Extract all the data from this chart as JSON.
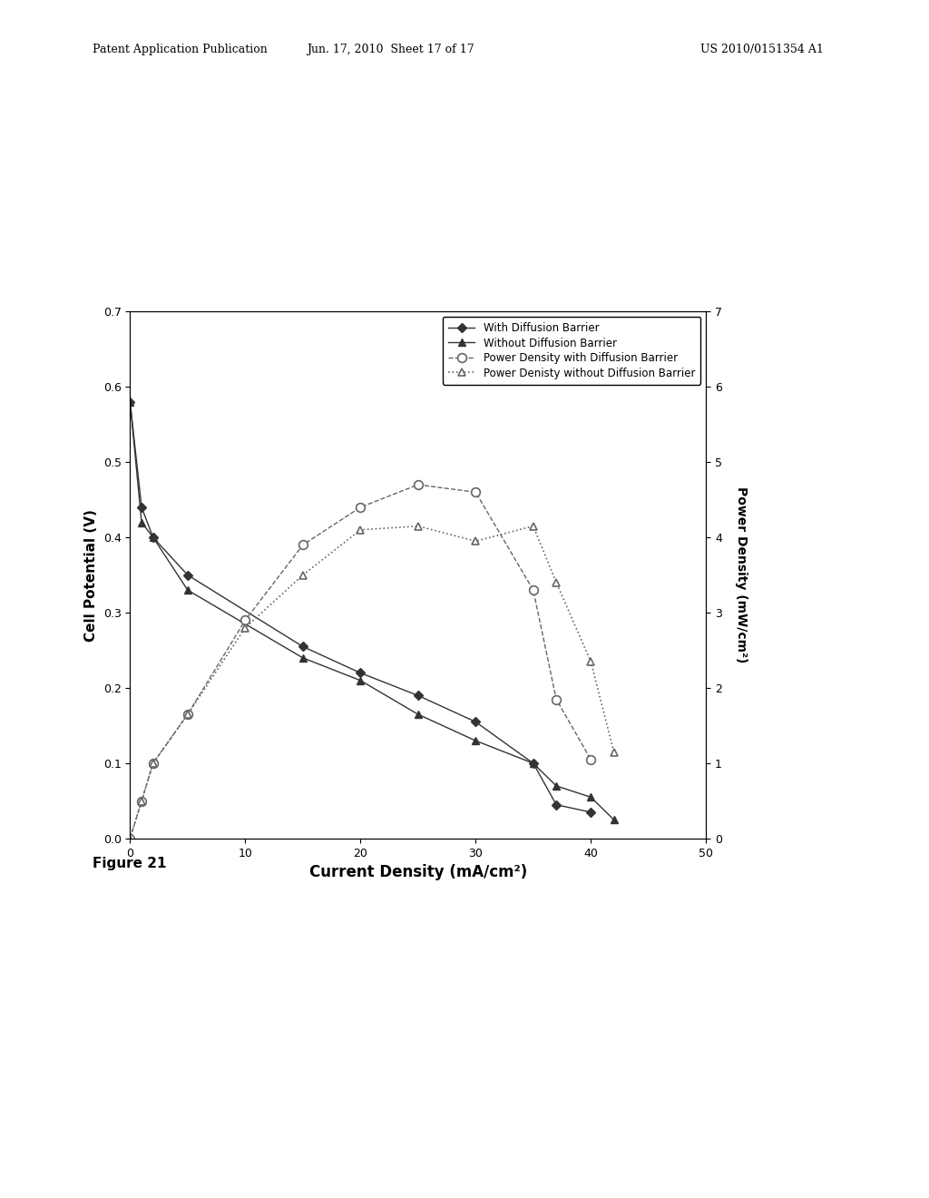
{
  "title_header_left": "Patent Application Publication",
  "title_header_mid": "Jun. 17, 2010  Sheet 17 of 17",
  "title_header_right": "US 2010/0151354 A1",
  "figure_label": "Figure 21",
  "xlabel": "Current Density (mA/cm²)",
  "ylabel_left": "Cell Potential (V)",
  "ylabel_right": "Power Density (mW/cm²)",
  "xlim": [
    0,
    50
  ],
  "ylim_left": [
    0,
    0.7
  ],
  "ylim_right": [
    0.0,
    7.0
  ],
  "yticks_left": [
    0,
    0.1,
    0.2,
    0.3,
    0.4,
    0.5,
    0.6,
    0.7
  ],
  "yticks_right": [
    0.0,
    1.0,
    2.0,
    3.0,
    4.0,
    5.0,
    6.0,
    7.0
  ],
  "xticks": [
    0,
    10,
    20,
    30,
    40,
    50
  ],
  "series1_x": [
    0,
    1,
    2,
    5,
    15,
    20,
    25,
    30,
    35,
    37,
    40
  ],
  "series1_y": [
    0.58,
    0.44,
    0.4,
    0.35,
    0.255,
    0.22,
    0.19,
    0.155,
    0.1,
    0.045,
    0.035
  ],
  "series1_label": "With Diffusion Barrier",
  "series2_x": [
    0,
    1,
    2,
    5,
    15,
    20,
    25,
    30,
    35,
    37,
    40,
    42
  ],
  "series2_y": [
    0.58,
    0.42,
    0.4,
    0.33,
    0.24,
    0.21,
    0.165,
    0.13,
    0.1,
    0.07,
    0.055,
    0.025
  ],
  "series2_label": "Without Diffusion Barrier",
  "series3_x": [
    0,
    1,
    2,
    5,
    10,
    15,
    20,
    25,
    30,
    35,
    37,
    40
  ],
  "series3_y": [
    0.0,
    0.5,
    1.0,
    1.65,
    2.9,
    3.9,
    4.4,
    4.7,
    4.6,
    3.3,
    1.85,
    1.05
  ],
  "series3_label": "Power Density with Diffusion Barrier",
  "series4_x": [
    0,
    1,
    2,
    5,
    10,
    15,
    20,
    25,
    30,
    35,
    37,
    40,
    42
  ],
  "series4_y": [
    0.0,
    0.5,
    1.0,
    1.65,
    2.8,
    3.5,
    4.1,
    4.15,
    3.95,
    4.15,
    3.4,
    2.35,
    1.15
  ],
  "series4_label": "Power Denisty without Diffusion Barrier"
}
